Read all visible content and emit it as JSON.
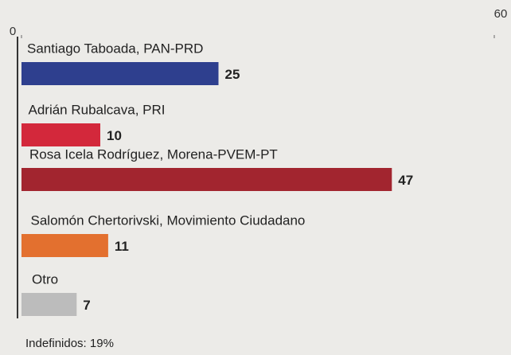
{
  "chart_data": {
    "type": "bar",
    "orientation": "horizontal",
    "categories": [
      "Santiago Taboada, PAN-PRD",
      "Adrián Rubalcava, PRI",
      "Rosa Icela Rodríguez, Morena-PVEM-PT",
      "Salomón Chertorivski, Movimiento Ciudadano",
      "Otro"
    ],
    "values": [
      25,
      10,
      47,
      11,
      7
    ],
    "colors": [
      "#2e3f8e",
      "#d3283b",
      "#a2252f",
      "#e3702f",
      "#bcbcbc"
    ],
    "xlim": [
      0,
      60
    ],
    "xticks": [
      0,
      60
    ],
    "annotation": "Indefinidos: 19%"
  }
}
